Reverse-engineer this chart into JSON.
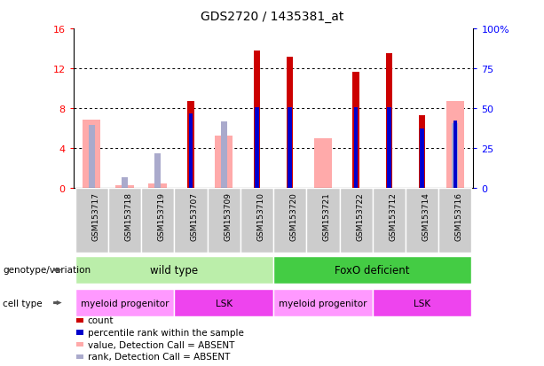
{
  "title": "GDS2720 / 1435381_at",
  "samples": [
    "GSM153717",
    "GSM153718",
    "GSM153719",
    "GSM153707",
    "GSM153709",
    "GSM153710",
    "GSM153720",
    "GSM153721",
    "GSM153722",
    "GSM153712",
    "GSM153714",
    "GSM153716"
  ],
  "count_values": [
    0,
    0,
    0,
    8.7,
    0,
    13.8,
    13.2,
    0,
    11.7,
    13.5,
    7.3,
    0
  ],
  "rank_values": [
    0,
    0,
    0,
    7.5,
    0,
    8.1,
    8.1,
    0,
    8.1,
    8.1,
    6.0,
    6.8
  ],
  "absent_value_values": [
    6.9,
    0.3,
    0.5,
    0,
    5.3,
    0,
    0,
    5.0,
    0,
    0,
    0,
    8.7
  ],
  "absent_rank_values": [
    6.3,
    1.1,
    3.5,
    0,
    6.7,
    0,
    0,
    0,
    0,
    0,
    6.3,
    6.5
  ],
  "ylim": [
    0,
    16
  ],
  "y2lim": [
    0,
    100
  ],
  "yticks": [
    0,
    4,
    8,
    12,
    16
  ],
  "ytick_labels": [
    "0",
    "4",
    "8",
    "12",
    "16"
  ],
  "y2ticks": [
    0,
    25,
    50,
    75,
    100
  ],
  "y2tick_labels": [
    "0",
    "25",
    "50",
    "75",
    "100%"
  ],
  "color_count": "#cc0000",
  "color_rank": "#0000cc",
  "color_absent_value": "#ffaaaa",
  "color_absent_rank": "#aaaacc",
  "genotype_groups": [
    {
      "label": "wild type",
      "start": 0,
      "end": 5,
      "color": "#bbeeaa"
    },
    {
      "label": "FoxO deficient",
      "start": 6,
      "end": 11,
      "color": "#44cc44"
    }
  ],
  "celltype_groups": [
    {
      "label": "myeloid progenitor",
      "start": 0,
      "end": 2,
      "color": "#ff99ff"
    },
    {
      "label": "LSK",
      "start": 3,
      "end": 5,
      "color": "#ee44ee"
    },
    {
      "label": "myeloid progenitor",
      "start": 6,
      "end": 8,
      "color": "#ff99ff"
    },
    {
      "label": "LSK",
      "start": 9,
      "end": 11,
      "color": "#ee44ee"
    }
  ],
  "legend_items": [
    {
      "label": "count",
      "color": "#cc0000"
    },
    {
      "label": "percentile rank within the sample",
      "color": "#0000cc"
    },
    {
      "label": "value, Detection Call = ABSENT",
      "color": "#ffaaaa"
    },
    {
      "label": "rank, Detection Call = ABSENT",
      "color": "#aaaacc"
    }
  ],
  "genotype_label": "genotype/variation",
  "celltype_label": "cell type",
  "col_bg": "#cccccc",
  "col_border": "#ffffff"
}
